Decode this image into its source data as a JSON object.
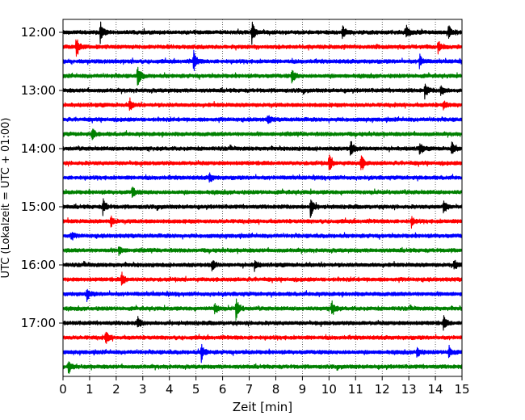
{
  "chart_data": {
    "type": "line",
    "subtype": "helicorder",
    "xlabel": "Zeit  [min]",
    "ylabel": "UTC (Lokalzeit = UTC + 01:00)",
    "xlim": [
      0,
      15
    ],
    "xticks": [
      0,
      1,
      2,
      3,
      4,
      5,
      6,
      7,
      8,
      9,
      10,
      11,
      12,
      13,
      14,
      15
    ],
    "xtick_labels": [
      "0",
      "1",
      "2",
      "3",
      "4",
      "5",
      "6",
      "7",
      "8",
      "9",
      "10",
      "11",
      "12",
      "13",
      "14",
      "15"
    ],
    "grid": "vertical dotted at each minute",
    "start_time": "12:00",
    "line_interval_min": 15,
    "ytick_labels": [
      "12:00",
      "13:00",
      "14:00",
      "15:00",
      "16:00",
      "17:00"
    ],
    "ytick_rows": [
      0,
      4,
      8,
      12,
      16,
      20
    ],
    "colors": [
      "#000000",
      "#ff0000",
      "#0000ff",
      "#008000"
    ],
    "traces": [
      {
        "row": 0,
        "events": [
          [
            1.4,
            1.0
          ],
          [
            7.1,
            1.0
          ],
          [
            10.5,
            0.6
          ],
          [
            12.9,
            0.6
          ],
          [
            14.5,
            0.6
          ]
        ]
      },
      {
        "row": 1,
        "events": [
          [
            0.5,
            1.0
          ],
          [
            14.1,
            0.5
          ]
        ]
      },
      {
        "row": 2,
        "events": [
          [
            4.9,
            1.0
          ],
          [
            13.4,
            0.6
          ]
        ]
      },
      {
        "row": 3,
        "events": [
          [
            2.8,
            1.0
          ],
          [
            8.6,
            0.6
          ]
        ]
      },
      {
        "row": 4,
        "events": [
          [
            13.6,
            0.6
          ],
          [
            14.2,
            0.5
          ]
        ]
      },
      {
        "row": 5,
        "events": [
          [
            2.5,
            0.5
          ],
          [
            14.3,
            0.4
          ]
        ]
      },
      {
        "row": 6,
        "events": [
          [
            7.7,
            0.4
          ]
        ]
      },
      {
        "row": 7,
        "events": [
          [
            1.1,
            0.5
          ]
        ]
      },
      {
        "row": 8,
        "events": [
          [
            10.8,
            0.8
          ],
          [
            13.4,
            0.6
          ],
          [
            14.6,
            0.6
          ]
        ]
      },
      {
        "row": 9,
        "events": [
          [
            10.0,
            0.8
          ],
          [
            11.2,
            0.8
          ]
        ]
      },
      {
        "row": 10,
        "events": [
          [
            5.5,
            0.4
          ]
        ]
      },
      {
        "row": 11,
        "events": [
          [
            2.6,
            0.5
          ]
        ]
      },
      {
        "row": 12,
        "events": [
          [
            1.5,
            0.7
          ],
          [
            9.3,
            1.0
          ],
          [
            14.3,
            0.6
          ]
        ]
      },
      {
        "row": 13,
        "events": [
          [
            1.8,
            0.5
          ],
          [
            13.1,
            0.4
          ]
        ]
      },
      {
        "row": 14,
        "events": [
          [
            0.3,
            0.3
          ]
        ]
      },
      {
        "row": 15,
        "events": [
          [
            2.1,
            0.4
          ]
        ]
      },
      {
        "row": 16,
        "events": [
          [
            5.6,
            0.5
          ],
          [
            7.2,
            0.4
          ],
          [
            14.7,
            0.4
          ]
        ]
      },
      {
        "row": 17,
        "events": [
          [
            2.2,
            0.6
          ]
        ]
      },
      {
        "row": 18,
        "events": [
          [
            0.9,
            0.5
          ]
        ]
      },
      {
        "row": 19,
        "events": [
          [
            6.5,
            1.0
          ],
          [
            10.1,
            0.7
          ],
          [
            5.7,
            0.5
          ]
        ]
      },
      {
        "row": 20,
        "events": [
          [
            2.8,
            0.5
          ],
          [
            14.3,
            0.6
          ]
        ]
      },
      {
        "row": 21,
        "events": [
          [
            1.6,
            0.6
          ]
        ]
      },
      {
        "row": 22,
        "events": [
          [
            5.2,
            0.8
          ],
          [
            13.3,
            0.5
          ],
          [
            14.5,
            0.6
          ]
        ]
      },
      {
        "row": 23,
        "events": [
          [
            0.2,
            0.6
          ]
        ]
      }
    ]
  }
}
